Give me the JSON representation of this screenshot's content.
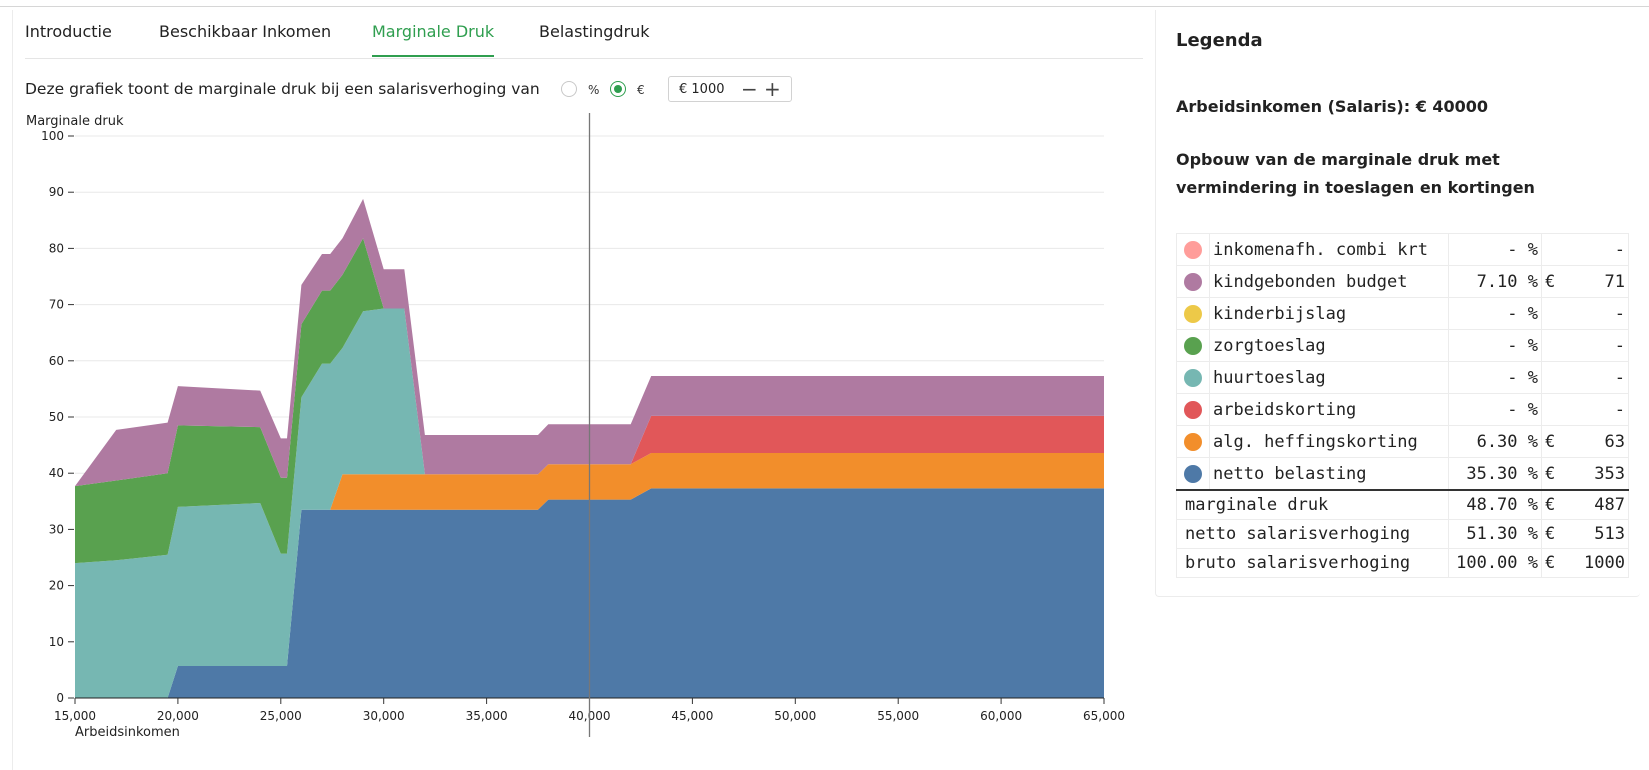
{
  "tabs": [
    {
      "label": "Introductie"
    },
    {
      "label": "Beschikbaar Inkomen"
    },
    {
      "label": "Marginale Druk",
      "active": true
    },
    {
      "label": "Belastingdruk"
    }
  ],
  "controls": {
    "description": "Deze grafiek toont de marginale druk bij een salarisverhoging van",
    "radio_percent_label": "%",
    "radio_euro_label": "€",
    "selected_mode": "€",
    "amount_value": "€ 1000",
    "minus_icon": "minus-icon",
    "plus_icon": "plus-icon"
  },
  "chart_data": {
    "type": "area",
    "stacked": true,
    "ylabel": "Marginale druk",
    "xlabel": "Arbeidsinkomen",
    "xlim": [
      15000,
      65000
    ],
    "ylim": [
      0,
      100
    ],
    "x_ticks": [
      "15,000",
      "20,000",
      "25,000",
      "30,000",
      "35,000",
      "40,000",
      "45,000",
      "50,000",
      "55,000",
      "60,000",
      "65,000"
    ],
    "y_ticks": [
      "0",
      "10",
      "20",
      "30",
      "40",
      "50",
      "60",
      "70",
      "80",
      "90",
      "100"
    ],
    "grid": "horizontal",
    "marker_x": 40000,
    "x": [
      15000,
      17000,
      19500,
      20000,
      24000,
      25000,
      25300,
      26000,
      27000,
      27400,
      28000,
      29000,
      30000,
      31000,
      32000,
      33000,
      36000,
      37500,
      38000,
      42000,
      43000,
      44000,
      65000
    ],
    "series": [
      {
        "name": "netto belasting",
        "color": "#4e79a7",
        "values": [
          0,
          0,
          0,
          5.7,
          5.7,
          5.7,
          5.7,
          33.5,
          33.5,
          33.5,
          33.5,
          33.5,
          33.5,
          33.5,
          33.5,
          33.5,
          33.5,
          33.5,
          35.3,
          35.3,
          37.3,
          37.3,
          37.3
        ]
      },
      {
        "name": "alg. heffingskorting",
        "color": "#f28e2b",
        "values": [
          0,
          0,
          0,
          0,
          0,
          0,
          0,
          0,
          0,
          0,
          6.3,
          6.3,
          6.3,
          6.3,
          6.3,
          6.3,
          6.3,
          6.3,
          6.3,
          6.3,
          6.3,
          6.3,
          6.3
        ]
      },
      {
        "name": "arbeidskorting",
        "color": "#e15759",
        "values": [
          0,
          0,
          0,
          0,
          0,
          0,
          0,
          0,
          0,
          0,
          0,
          0,
          0,
          0,
          0,
          0,
          0,
          0,
          0,
          0,
          6.6,
          6.6,
          6.6
        ]
      },
      {
        "name": "huurtoeslag",
        "color": "#76b7b2",
        "values": [
          24,
          24.5,
          25.5,
          28.3,
          29,
          20,
          20,
          20,
          26,
          26,
          22.5,
          29,
          29.5,
          29.5,
          0,
          0,
          0,
          0,
          0,
          0,
          0,
          0,
          0
        ]
      },
      {
        "name": "zorgtoeslag",
        "color": "#59a14f",
        "values": [
          13.7,
          14.2,
          14.5,
          14.5,
          13.5,
          13.5,
          13.5,
          13,
          13,
          13,
          13,
          13,
          0,
          0,
          0,
          0,
          0,
          0,
          0,
          0,
          0,
          0,
          0
        ]
      },
      {
        "name": "kinderbijslag",
        "color": "#edc948",
        "values": [
          0,
          0,
          0,
          0,
          0,
          0,
          0,
          0,
          0,
          0,
          0,
          0,
          0,
          0,
          0,
          0,
          0,
          0,
          0,
          0,
          0,
          0,
          0
        ]
      },
      {
        "name": "kindgebonden budget",
        "color": "#af7aa1",
        "values": [
          0,
          9,
          9,
          7,
          6.5,
          7,
          7,
          7,
          6.5,
          6.5,
          6.5,
          7,
          7,
          7,
          7,
          7,
          7,
          7,
          7.1,
          7.1,
          7.1,
          7.1,
          7.1
        ]
      },
      {
        "name": "inkomenafh. combi krt",
        "color": "#ff9d9a",
        "values": [
          0,
          0,
          0,
          0,
          0,
          0,
          0,
          0,
          0,
          0,
          0,
          0,
          0,
          0,
          0,
          0,
          0,
          0,
          0,
          0,
          0,
          0,
          0
        ]
      }
    ]
  },
  "legend": {
    "title": "Legenda",
    "salary_text": "Arbeidsinkomen (Salaris): € 40000",
    "breakdown_title": "Opbouw van de marginale druk met vermindering in toeslagen en kortingen",
    "items": [
      {
        "name": "inkomenafh. combi krt",
        "color": "#ff9d9a",
        "pct": "- %",
        "eur": "",
        "amount": "-"
      },
      {
        "name": "kindgebonden budget",
        "color": "#af7aa1",
        "pct": "7.10 %",
        "eur": "€",
        "amount": "71"
      },
      {
        "name": "kinderbijslag",
        "color": "#edc948",
        "pct": "- %",
        "eur": "",
        "amount": "-"
      },
      {
        "name": "zorgtoeslag",
        "color": "#59a14f",
        "pct": "- %",
        "eur": "",
        "amount": "-"
      },
      {
        "name": "huurtoeslag",
        "color": "#76b7b2",
        "pct": "- %",
        "eur": "",
        "amount": "-"
      },
      {
        "name": "arbeidskorting",
        "color": "#e15759",
        "pct": "- %",
        "eur": "",
        "amount": "-"
      },
      {
        "name": "alg. heffingskorting",
        "color": "#f28e2b",
        "pct": "6.30 %",
        "eur": "€",
        "amount": "63"
      },
      {
        "name": "netto belasting",
        "color": "#4e79a7",
        "pct": "35.30 %",
        "eur": "€",
        "amount": "353"
      }
    ],
    "totals": [
      {
        "name": "marginale druk",
        "pct": "48.70 %",
        "eur": "€",
        "amount": "487"
      },
      {
        "name": "netto salarisverhoging",
        "pct": "51.30 %",
        "eur": "€",
        "amount": "513"
      },
      {
        "name": "bruto salarisverhoging",
        "pct": "100.00 %",
        "eur": "€",
        "amount": "1000"
      }
    ]
  }
}
